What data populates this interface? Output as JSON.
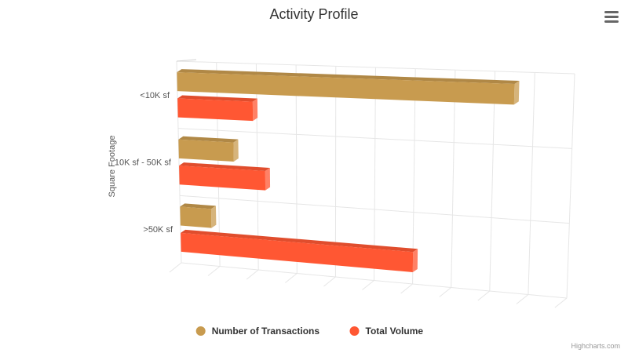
{
  "chart_data": {
    "type": "bar",
    "title": "Activity Profile",
    "xlabel": "Square Footage",
    "ylabel": "",
    "categories": [
      "<10K sf",
      "10K sf - 50K sf",
      ">50K sf"
    ],
    "series": [
      {
        "name": "Number of Transactions",
        "color": "#c89b4f",
        "values": [
          85,
          14,
          8
        ]
      },
      {
        "name": "Total Volume",
        "color": "#ff5733",
        "values": [
          19,
          22,
          60
        ]
      }
    ],
    "ylim": [
      0,
      100
    ],
    "grid": true,
    "legend_position": "bottom-center",
    "credits": "Highcharts.com"
  },
  "ui": {
    "menu_icon": "hamburger-menu-icon"
  }
}
